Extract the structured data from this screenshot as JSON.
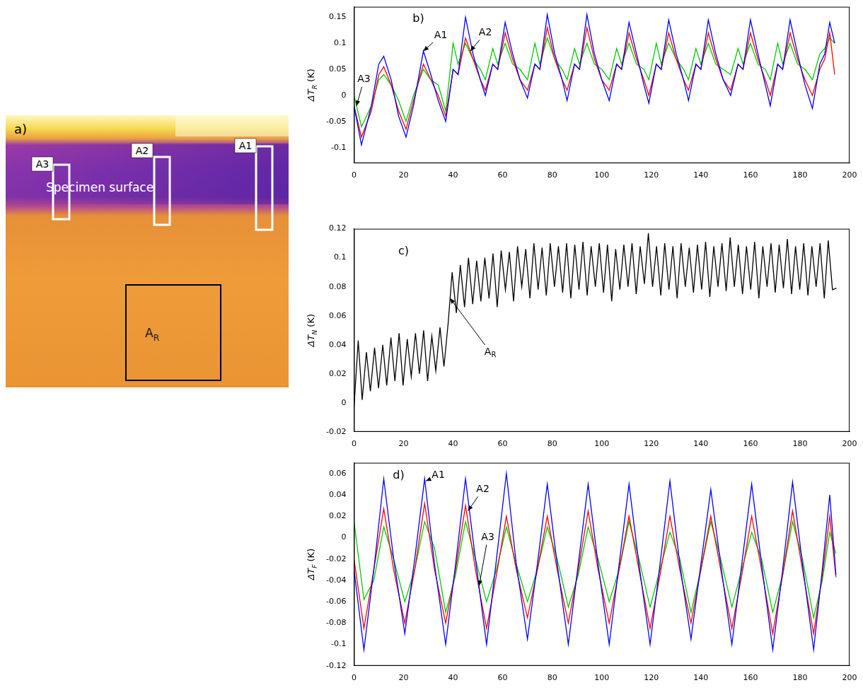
{
  "image_panel": {
    "panel_label": "a)",
    "caption": "Specimen surface",
    "regions": [
      {
        "label": "A3"
      },
      {
        "label": "A2"
      },
      {
        "label": "A1"
      },
      {
        "label": "A",
        "subscript": "R"
      }
    ]
  },
  "chart_data": [
    {
      "type": "line",
      "panel_label": "b)",
      "y_title": {
        "text": "ΔT",
        "subscript": "R",
        "suffix": " (K)"
      },
      "x": [
        0,
        3,
        7,
        10,
        12,
        15,
        18,
        21,
        24,
        28,
        31,
        34,
        37,
        40,
        42,
        45,
        48,
        51,
        53,
        56,
        58,
        61,
        64,
        67,
        70,
        73,
        75,
        78,
        81,
        84,
        86,
        89,
        91,
        94,
        97,
        100,
        103,
        106,
        108,
        111,
        114,
        117,
        119,
        122,
        124,
        127,
        130,
        133,
        135,
        138,
        140,
        143,
        146,
        149,
        152,
        155,
        157,
        160,
        163,
        166,
        168,
        171,
        173,
        176,
        179,
        182,
        185,
        188,
        190,
        192,
        194
      ],
      "series": [
        {
          "name": "A1",
          "color": "#0000ff",
          "arrow": {
            "x": 28,
            "y": 0.085,
            "text_x": 35,
            "text_y": 0.115
          },
          "values": [
            -0.02,
            -0.095,
            -0.02,
            0.06,
            0.075,
            0.03,
            -0.04,
            -0.08,
            -0.02,
            0.085,
            0.04,
            -0.01,
            -0.05,
            0.05,
            0.04,
            0.15,
            0.08,
            0.03,
            0,
            0.06,
            0.05,
            0.14,
            0.08,
            0.03,
            -0.005,
            0.06,
            0.05,
            0.155,
            0.08,
            0.03,
            -0.01,
            0.06,
            0.05,
            0.155,
            0.08,
            0.03,
            -0.01,
            0.06,
            0.05,
            0.14,
            0.08,
            0.02,
            -0.015,
            0.06,
            0.05,
            0.145,
            0.08,
            0.03,
            -0.01,
            0.06,
            0.05,
            0.145,
            0.08,
            0.03,
            0,
            0.06,
            0.05,
            0.145,
            0.08,
            0.02,
            -0.02,
            0.06,
            0.05,
            0.145,
            0.08,
            0.02,
            -0.025,
            0.06,
            0.08,
            0.14,
            0.1
          ]
        },
        {
          "name": "A2",
          "color": "#ff0000",
          "arrow": {
            "x": 47,
            "y": 0.085,
            "text_x": 53,
            "text_y": 0.12
          },
          "values": [
            -0.02,
            -0.08,
            -0.03,
            0.04,
            0.055,
            0.02,
            -0.03,
            -0.065,
            -0.01,
            0.06,
            0.03,
            0,
            -0.04,
            0.05,
            0.04,
            0.11,
            0.07,
            0.03,
            0.01,
            0.06,
            0.05,
            0.12,
            0.07,
            0.03,
            0.01,
            0.06,
            0.05,
            0.13,
            0.07,
            0.03,
            0.01,
            0.06,
            0.05,
            0.13,
            0.07,
            0.03,
            0.01,
            0.06,
            0.05,
            0.12,
            0.07,
            0.03,
            0,
            0.06,
            0.05,
            0.12,
            0.07,
            0.03,
            0.01,
            0.06,
            0.05,
            0.12,
            0.07,
            0.03,
            0.01,
            0.06,
            0.05,
            0.12,
            0.07,
            0.03,
            0,
            0.06,
            0.05,
            0.12,
            0.07,
            0.03,
            0,
            0.05,
            0.07,
            0.12,
            0.04
          ]
        },
        {
          "name": "A3",
          "color": "#00cc00",
          "arrow": {
            "x": 1,
            "y": -0.02,
            "text_x": 4,
            "text_y": 0.03
          },
          "values": [
            0,
            -0.06,
            -0.02,
            0.03,
            0.04,
            0.02,
            -0.01,
            -0.05,
            0,
            0.05,
            0.03,
            0.02,
            -0.03,
            0.1,
            0.06,
            0.1,
            0.07,
            0.05,
            0.03,
            0.09,
            0.06,
            0.1,
            0.06,
            0.05,
            0.03,
            0.1,
            0.06,
            0.11,
            0.07,
            0.05,
            0.03,
            0.09,
            0.06,
            0.1,
            0.06,
            0.05,
            0.03,
            0.09,
            0.06,
            0.1,
            0.06,
            0.05,
            0.03,
            0.1,
            0.06,
            0.1,
            0.07,
            0.05,
            0.03,
            0.09,
            0.06,
            0.1,
            0.06,
            0.05,
            0.04,
            0.09,
            0.06,
            0.1,
            0.06,
            0.05,
            0.03,
            0.1,
            0.06,
            0.1,
            0.06,
            0.05,
            0.03,
            0.08,
            0.09,
            0.11,
            0.1
          ]
        }
      ],
      "xlim": [
        0,
        200
      ],
      "xticks": [
        0,
        20,
        40,
        60,
        80,
        100,
        120,
        140,
        160,
        180,
        200
      ],
      "ylim": [
        -0.13,
        0.17
      ],
      "yticks": [
        -0.1,
        -0.05,
        0,
        0.05,
        0.1,
        0.15
      ],
      "grid": false
    },
    {
      "type": "line",
      "panel_label": "c)",
      "y_title": {
        "text": "ΔT",
        "subscript": "N",
        "suffix": " (K)"
      },
      "x": [
        0,
        1.7,
        3.3,
        5,
        6.6,
        8.3,
        9.9,
        11.6,
        13.2,
        14.9,
        16.5,
        18.2,
        19.8,
        21.5,
        23.1,
        24.8,
        26.4,
        28.1,
        29.7,
        31.4,
        33,
        34.7,
        36.3,
        38,
        39.6,
        41.3,
        42.9,
        44.6,
        46.2,
        47.9,
        49.5,
        51.2,
        52.8,
        54.5,
        56.1,
        57.8,
        59.4,
        61.1,
        62.7,
        64.4,
        66,
        67.7,
        69.3,
        71,
        72.6,
        74.3,
        75.9,
        77.6,
        79.2,
        80.9,
        82.5,
        84.2,
        85.8,
        87.5,
        89.1,
        90.8,
        92.4,
        94.1,
        95.7,
        97.4,
        99,
        100.7,
        102.3,
        104,
        105.6,
        107.3,
        108.9,
        110.6,
        112.2,
        113.9,
        115.5,
        117.2,
        118.8,
        120.5,
        122.1,
        123.8,
        125.4,
        127.1,
        128.7,
        130.4,
        132,
        133.7,
        135.3,
        137,
        138.6,
        140.3,
        141.9,
        143.6,
        145.2,
        146.9,
        148.5,
        150.2,
        151.8,
        153.5,
        155.1,
        156.8,
        158.4,
        160.1,
        161.7,
        163.4,
        165,
        166.7,
        168.3,
        170,
        171.6,
        173.3,
        174.9,
        176.6,
        178.2,
        179.9,
        181.5,
        183.2,
        184.8,
        186.5,
        188.1,
        189.8,
        191.4,
        193.1,
        194.7
      ],
      "series": [
        {
          "color": "#000000",
          "values": [
            -0.003,
            0.043,
            0.002,
            0.035,
            0.008,
            0.038,
            0.01,
            0.04,
            0.012,
            0.045,
            0.015,
            0.048,
            0.012,
            0.044,
            0.018,
            0.048,
            0.02,
            0.05,
            0.015,
            0.046,
            0.022,
            0.052,
            0.025,
            0.055,
            0.09,
            0.062,
            0.095,
            0.066,
            0.1,
            0.068,
            0.098,
            0.07,
            0.1,
            0.072,
            0.103,
            0.066,
            0.105,
            0.078,
            0.104,
            0.07,
            0.108,
            0.08,
            0.106,
            0.072,
            0.11,
            0.078,
            0.107,
            0.074,
            0.11,
            0.08,
            0.108,
            0.076,
            0.11,
            0.072,
            0.109,
            0.078,
            0.111,
            0.074,
            0.108,
            0.08,
            0.11,
            0.076,
            0.109,
            0.07,
            0.106,
            0.078,
            0.109,
            0.08,
            0.11,
            0.075,
            0.108,
            0.082,
            0.117,
            0.08,
            0.108,
            0.074,
            0.11,
            0.078,
            0.108,
            0.072,
            0.11,
            0.08,
            0.107,
            0.076,
            0.109,
            0.078,
            0.111,
            0.073,
            0.108,
            0.08,
            0.11,
            0.077,
            0.114,
            0.08,
            0.109,
            0.075,
            0.108,
            0.078,
            0.111,
            0.072,
            0.108,
            0.08,
            0.11,
            0.076,
            0.109,
            0.079,
            0.113,
            0.075,
            0.108,
            0.078,
            0.11,
            0.074,
            0.108,
            0.08,
            0.11,
            0.072,
            0.112,
            0.078,
            0.079
          ]
        }
      ],
      "annotations": [
        {
          "text": "A",
          "subscript": "R",
          "x": 38.8,
          "y": 0.072,
          "text_x": 55,
          "text_y": 0.035
        }
      ],
      "xlim": [
        0,
        200
      ],
      "xticks": [
        0,
        20,
        40,
        60,
        80,
        100,
        120,
        140,
        160,
        180,
        200
      ],
      "ylim": [
        -0.02,
        0.12
      ],
      "yticks": [
        -0.02,
        0,
        0.02,
        0.04,
        0.06,
        0.08,
        0.1,
        0.12
      ],
      "grid": false
    },
    {
      "type": "line",
      "panel_label": "d)",
      "y_title": {
        "text": "ΔT",
        "subscript": "F",
        "suffix": " (K)"
      },
      "x": [
        0,
        4,
        8,
        12,
        16,
        20.5,
        24.5,
        28.5,
        32.5,
        37,
        41,
        45,
        49,
        53.5,
        57.5,
        61.5,
        65.5,
        70,
        74,
        78,
        82,
        86.5,
        90.5,
        94.5,
        98.5,
        103,
        107,
        111,
        115,
        119.5,
        123.5,
        127.5,
        131.5,
        136,
        140,
        144,
        148,
        152.5,
        156.5,
        160.5,
        164.5,
        169,
        173,
        177,
        181,
        185.5,
        189,
        192,
        194.5
      ],
      "series": [
        {
          "name": "A1",
          "color": "#0000ff",
          "arrow": {
            "x": 29,
            "y": 0.053,
            "text_x": 34,
            "text_y": 0.058
          },
          "values": [
            -0.03,
            -0.105,
            -0.03,
            0.055,
            -0.02,
            -0.09,
            -0.02,
            0.055,
            -0.025,
            -0.1,
            -0.025,
            0.055,
            -0.02,
            -0.1,
            -0.02,
            0.06,
            -0.025,
            -0.095,
            -0.025,
            0.05,
            -0.025,
            -0.1,
            -0.025,
            0.05,
            -0.025,
            -0.1,
            -0.025,
            0.05,
            -0.025,
            -0.1,
            -0.025,
            0.053,
            -0.025,
            -0.095,
            -0.025,
            0.045,
            -0.025,
            -0.1,
            -0.025,
            0.05,
            -0.025,
            -0.105,
            -0.03,
            0.052,
            -0.025,
            -0.105,
            -0.03,
            0.04,
            -0.035
          ]
        },
        {
          "name": "A2",
          "color": "#ff0000",
          "arrow": {
            "x": 46,
            "y": 0.025,
            "text_x": 52,
            "text_y": 0.045
          },
          "values": [
            -0.02,
            -0.085,
            -0.03,
            0.027,
            -0.03,
            -0.08,
            -0.03,
            0.032,
            -0.03,
            -0.08,
            -0.03,
            0.03,
            -0.03,
            -0.085,
            -0.035,
            0.02,
            -0.03,
            -0.075,
            -0.03,
            0.02,
            -0.03,
            -0.08,
            -0.03,
            0.025,
            -0.03,
            -0.08,
            -0.03,
            0.02,
            -0.03,
            -0.085,
            -0.035,
            0.02,
            -0.03,
            -0.08,
            -0.03,
            0.02,
            -0.03,
            -0.085,
            -0.035,
            0.02,
            -0.03,
            -0.09,
            -0.035,
            0.025,
            -0.03,
            -0.09,
            -0.035,
            0.02,
            -0.037
          ]
        },
        {
          "name": "A3",
          "color": "#00cc00",
          "arrow": {
            "x": 50.5,
            "y": -0.045,
            "text_x": 54,
            "text_y": 0
          },
          "values": [
            0.015,
            -0.058,
            -0.04,
            0.01,
            -0.02,
            -0.06,
            -0.03,
            0.015,
            -0.01,
            -0.07,
            -0.035,
            0.015,
            -0.02,
            -0.06,
            -0.03,
            0.01,
            -0.025,
            -0.06,
            -0.03,
            0.01,
            -0.02,
            -0.065,
            -0.035,
            0.01,
            -0.02,
            -0.06,
            -0.03,
            0.015,
            -0.02,
            -0.065,
            -0.03,
            0.005,
            -0.02,
            -0.07,
            -0.03,
            0.015,
            -0.02,
            -0.065,
            -0.03,
            0.005,
            -0.02,
            -0.07,
            -0.035,
            0.015,
            -0.02,
            -0.075,
            -0.04,
            0.005,
            -0.015
          ]
        }
      ],
      "xlim": [
        0,
        200
      ],
      "xticks": [
        0,
        20,
        40,
        60,
        80,
        100,
        120,
        140,
        160,
        180,
        200
      ],
      "ylim": [
        -0.12,
        0.07
      ],
      "yticks": [
        -0.12,
        -0.1,
        -0.08,
        -0.06,
        -0.04,
        -0.02,
        0,
        0.02,
        0.04,
        0.06
      ],
      "grid": false
    }
  ]
}
